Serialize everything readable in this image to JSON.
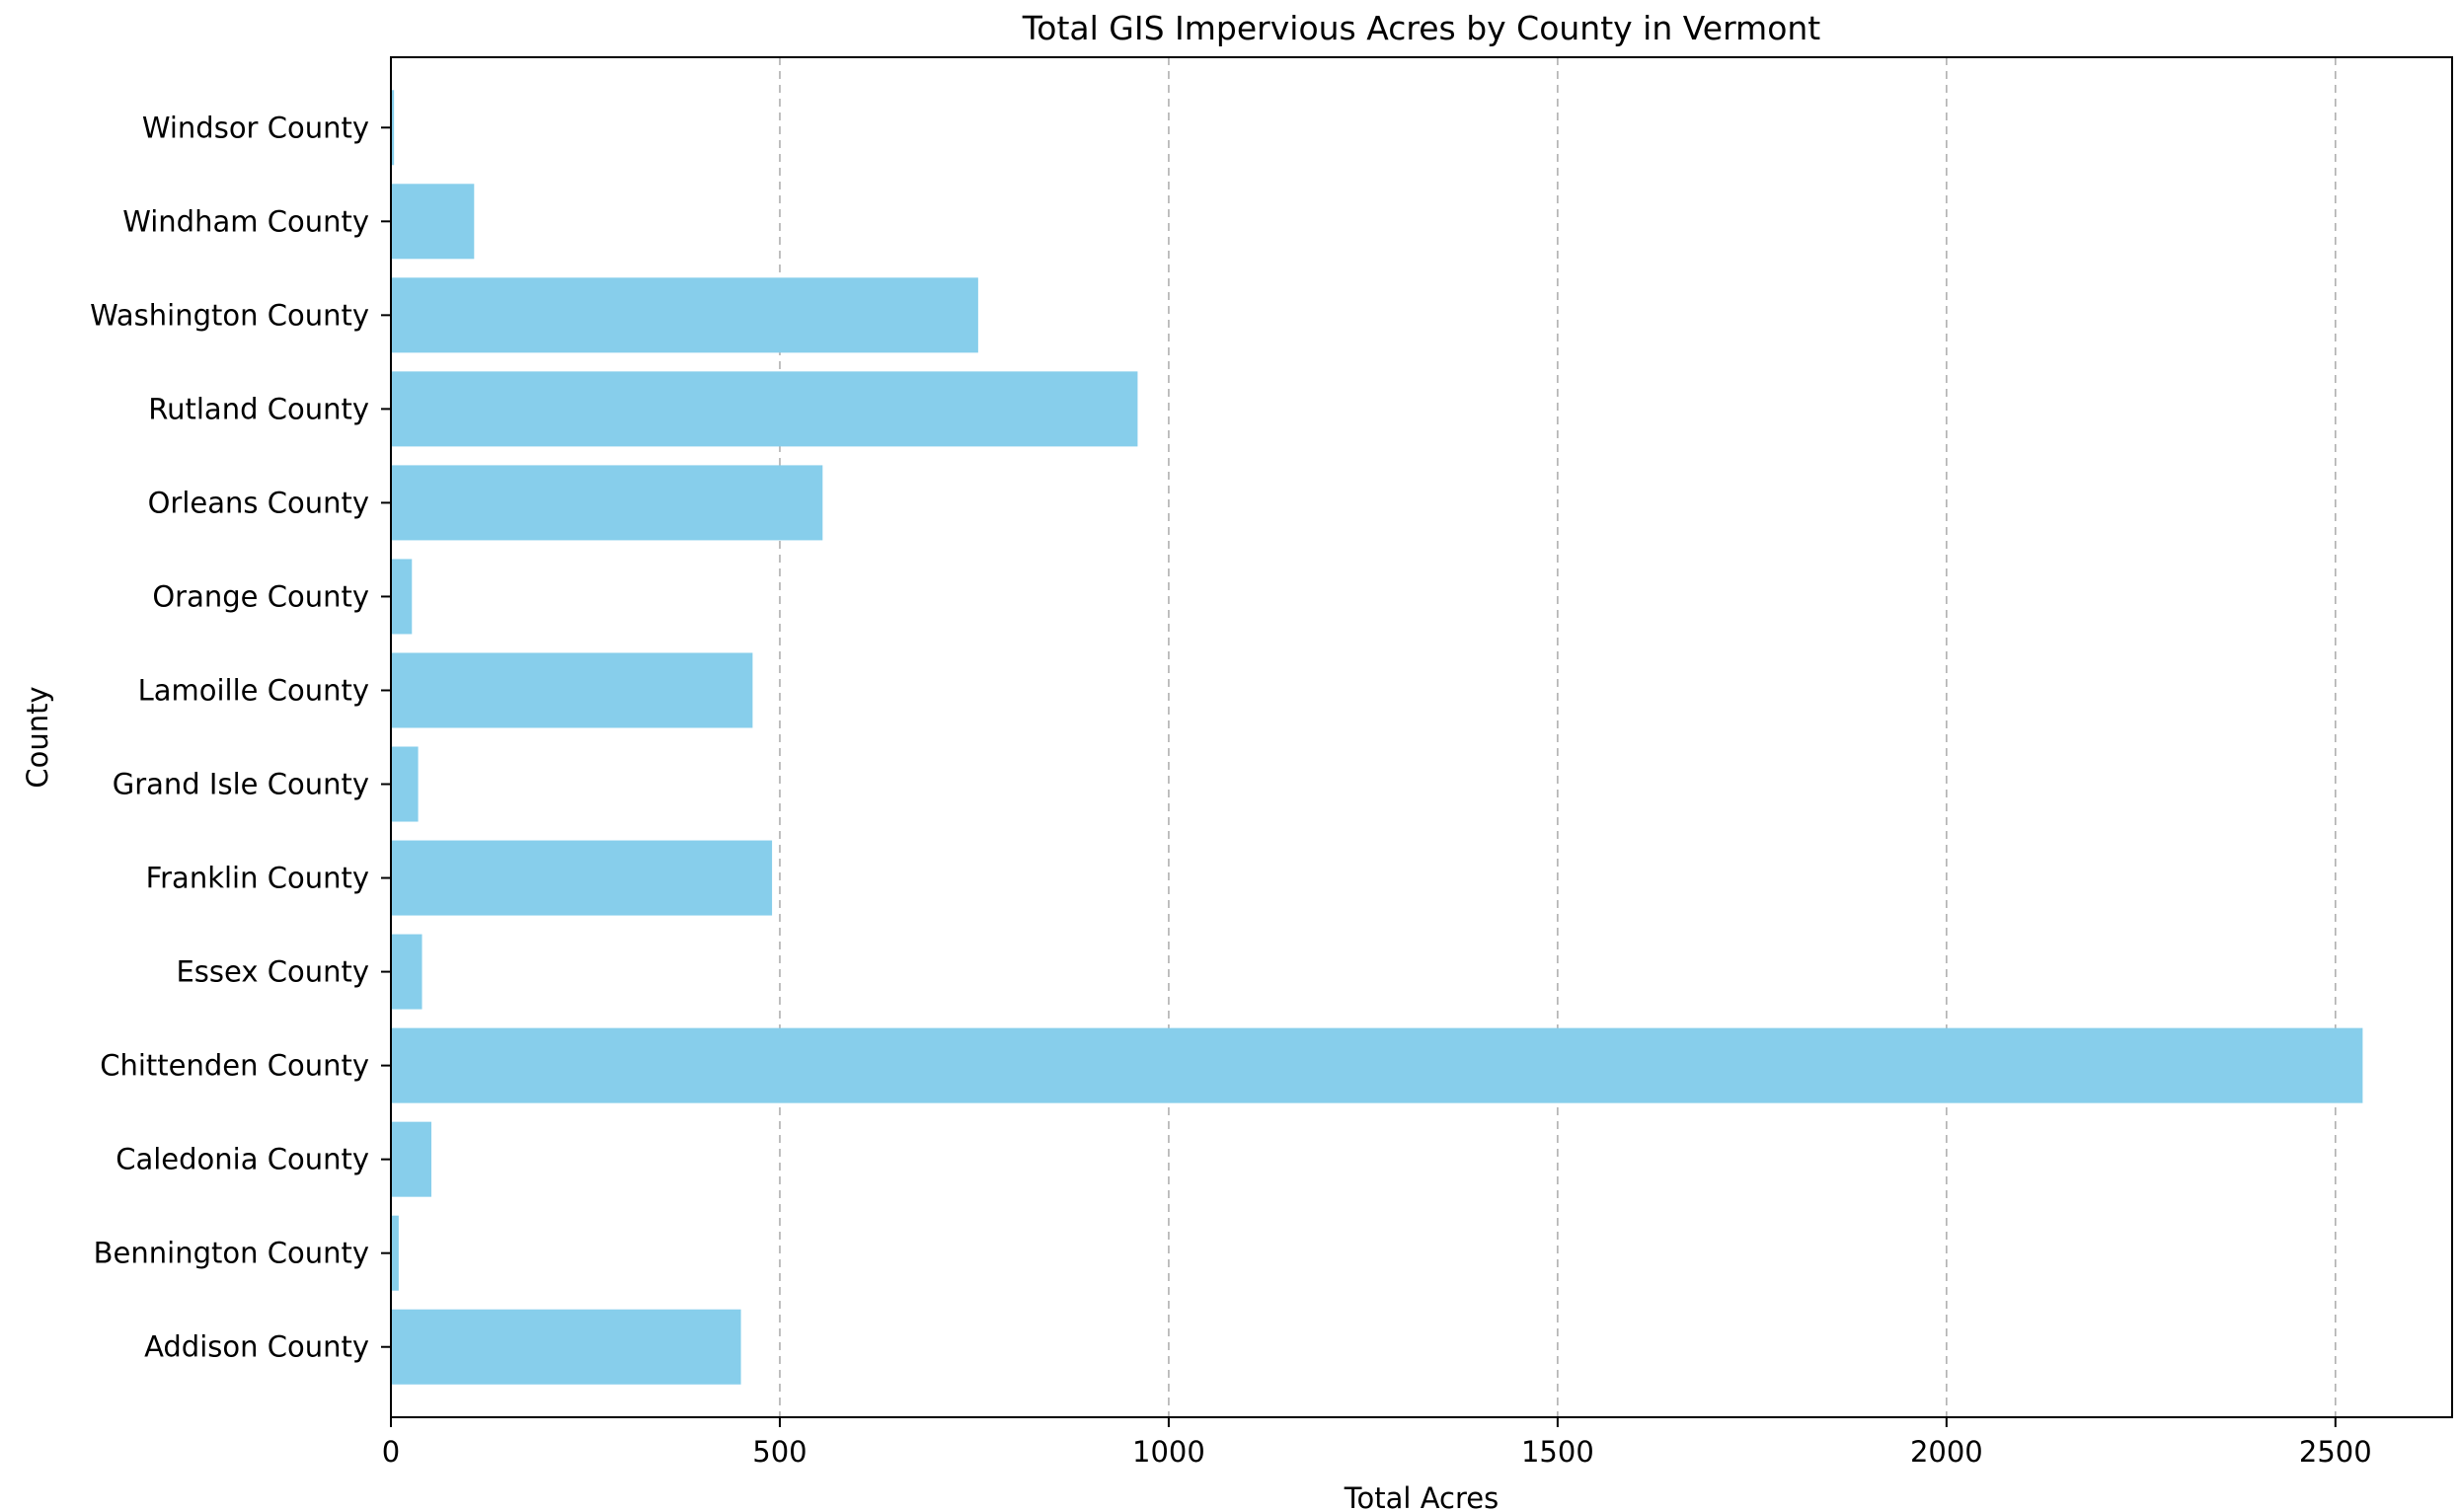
{
  "chart_data": {
    "type": "bar",
    "orientation": "horizontal",
    "title": "Total GIS Impervious Acres by County in Vermont",
    "xlabel": "Total Acres",
    "ylabel": "County",
    "xlim": [
      0,
      2650
    ],
    "xticks": [
      0,
      500,
      1000,
      1500,
      2000,
      2500
    ],
    "grid": "x-axis dashed",
    "bar_color": "#87ceeb",
    "categories": [
      "Addison County",
      "Bennington County",
      "Caledonia County",
      "Chittenden County",
      "Essex County",
      "Franklin County",
      "Grand Isle County",
      "Lamoille County",
      "Orange County",
      "Orleans County",
      "Rutland County",
      "Washington County",
      "Windham County",
      "Windsor County"
    ],
    "values": [
      450,
      10,
      52,
      2535,
      40,
      490,
      35,
      465,
      27,
      555,
      960,
      755,
      107,
      4
    ]
  }
}
